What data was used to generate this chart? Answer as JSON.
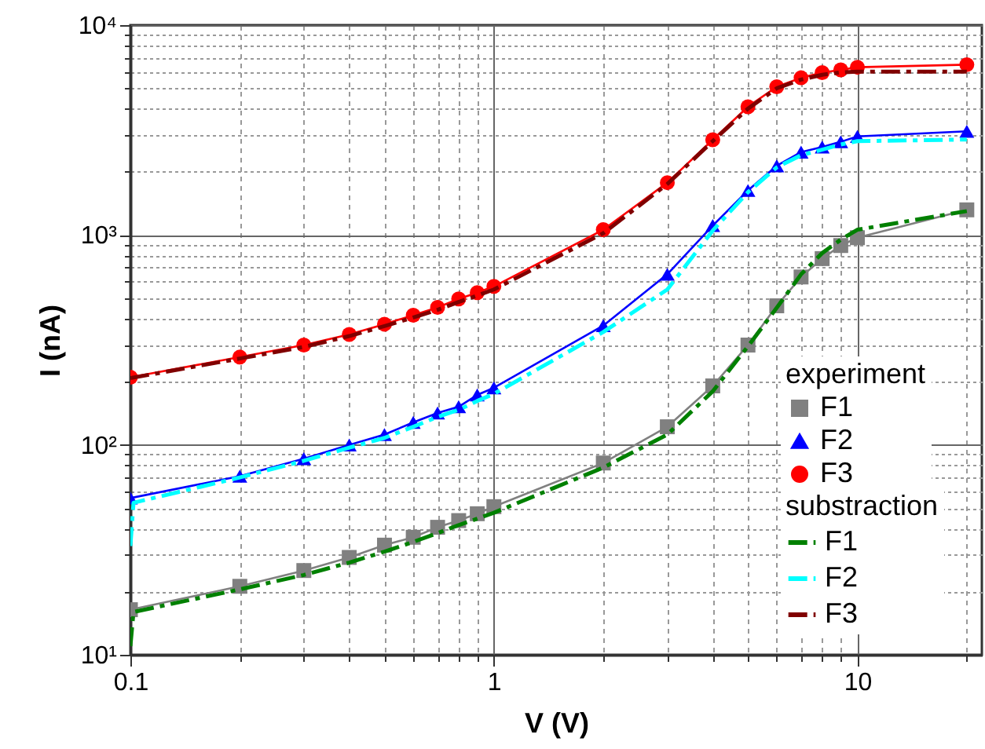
{
  "chart_data": {
    "type": "line",
    "xlabel": "V (V)",
    "ylabel": "I (nA)",
    "legend_title": "experiment",
    "annotations": [
      "substraction"
    ],
    "x": [
      0.1,
      0.2,
      0.3,
      0.4,
      0.5,
      0.6,
      0.7,
      0.8,
      0.9,
      1,
      2,
      3,
      4,
      5,
      6,
      7,
      8,
      9,
      10,
      20
    ],
    "series": [
      {
        "name": "F1",
        "color": "#808080",
        "marker": "square",
        "line_style": "solid",
        "values": [
          16.4,
          21.2,
          25.2,
          29.1,
          33.3,
          36.3,
          40.5,
          43.6,
          47,
          50.8,
          82,
          122,
          191,
          299,
          460,
          631,
          772,
          891,
          971,
          1318
        ]
      },
      {
        "name": "F2",
        "color": "#0000ff",
        "marker": "triangle",
        "line_style": "solid",
        "values": [
          55.8,
          71,
          86,
          100,
          112,
          128,
          142,
          152,
          173,
          187,
          370,
          650,
          1109,
          1630,
          2137,
          2483,
          2627,
          2780,
          2950,
          3120
        ]
      },
      {
        "name": "F3",
        "color": "#ff0000",
        "marker": "circle",
        "line_style": "solid",
        "values": [
          210,
          262,
          299,
          336,
          376,
          415,
          452,
          496,
          531,
          569,
          1060,
          1776,
          2845,
          4085,
          5084,
          5610,
          5940,
          6120,
          6300,
          6480
        ]
      },
      {
        "name": "F1",
        "color": "#008000",
        "marker": "none",
        "line_style": "dashed",
        "x": [
          0.1,
          0.102,
          0.2,
          0.3,
          0.4,
          0.5,
          0.6,
          0.7,
          0.8,
          0.9,
          1,
          2,
          3,
          4,
          5,
          6,
          7,
          8,
          9,
          10,
          20
        ],
        "values": [
          11,
          16,
          20.5,
          24,
          27.5,
          31,
          34.5,
          38,
          41.5,
          44.5,
          47.5,
          78,
          112,
          180,
          295,
          450,
          650,
          820,
          950,
          1060,
          1300
        ]
      },
      {
        "name": "F2",
        "color": "#00ffff",
        "marker": "none",
        "line_style": "dashed",
        "x": [
          0.1,
          0.102,
          0.2,
          0.3,
          0.4,
          0.5,
          0.6,
          0.7,
          0.8,
          0.9,
          1,
          2,
          3,
          4,
          5,
          6,
          7,
          8,
          9,
          10,
          20
        ],
        "values": [
          33,
          53,
          70,
          84,
          97,
          108,
          122,
          136,
          147,
          162,
          175,
          345,
          550,
          1050,
          1600,
          2100,
          2400,
          2550,
          2700,
          2800,
          2850
        ]
      },
      {
        "name": "F3",
        "color": "#800000",
        "marker": "none",
        "line_style": "dashed",
        "values": [
          208,
          258,
          293,
          330,
          368,
          405,
          440,
          480,
          515,
          550,
          1020,
          1750,
          2800,
          4000,
          5000,
          5500,
          5800,
          5950,
          6000,
          6000
        ]
      }
    ],
    "log": "xy",
    "xlim": [
      0.1,
      22
    ],
    "ylim": [
      10,
      10000
    ],
    "xticks": [
      0.1,
      {
        "value": 0.2,
        "label": null
      },
      {
        "value": 0.3,
        "label": null
      },
      {
        "value": 0.4,
        "label": null
      },
      {
        "value": 0.5,
        "label": null
      },
      {
        "value": 0.6,
        "label": null
      },
      {
        "value": 0.7,
        "label": null
      },
      {
        "value": 0.8,
        "label": null
      },
      {
        "value": 0.9,
        "label": null
      },
      1,
      {
        "value": 2,
        "label": null
      },
      {
        "value": 3,
        "label": null
      },
      {
        "value": 4,
        "label": null
      },
      {
        "value": 5,
        "label": null
      },
      {
        "value": 6,
        "label": null
      },
      {
        "value": 7,
        "label": null
      },
      {
        "value": 8,
        "label": null
      },
      {
        "value": 9,
        "label": null
      },
      10,
      {
        "value": 20,
        "label": null
      }
    ],
    "yticks": [
      {
        "value": 10,
        "label": "10¹"
      },
      {
        "value": 20,
        "label": null
      },
      {
        "value": 30,
        "label": null
      },
      {
        "value": 40,
        "label": null
      },
      {
        "value": 50,
        "label": null
      },
      {
        "value": 60,
        "label": null
      },
      {
        "value": 70,
        "label": null
      },
      {
        "value": 80,
        "label": null
      },
      {
        "value": 90,
        "label": null
      },
      {
        "value": 100,
        "label": "10²"
      },
      {
        "value": 200,
        "label": null
      },
      {
        "value": 300,
        "label": null
      },
      {
        "value": 400,
        "label": null
      },
      {
        "value": 500,
        "label": null
      },
      {
        "value": 600,
        "label": null
      },
      {
        "value": 700,
        "label": null
      },
      {
        "value": 800,
        "label": null
      },
      {
        "value": 900,
        "label": null
      },
      {
        "value": 1000,
        "label": "10³"
      },
      {
        "value": 2000,
        "label": null
      },
      {
        "value": 3000,
        "label": null
      },
      {
        "value": 4000,
        "label": null
      },
      {
        "value": 5000,
        "label": null
      },
      {
        "value": 6000,
        "label": null
      },
      {
        "value": 7000,
        "label": null
      },
      {
        "value": 8000,
        "label": null
      },
      {
        "value": 9000,
        "label": null
      },
      {
        "value": 10000,
        "label": "10⁴"
      }
    ],
    "grid": true,
    "legend": "bottom right"
  }
}
